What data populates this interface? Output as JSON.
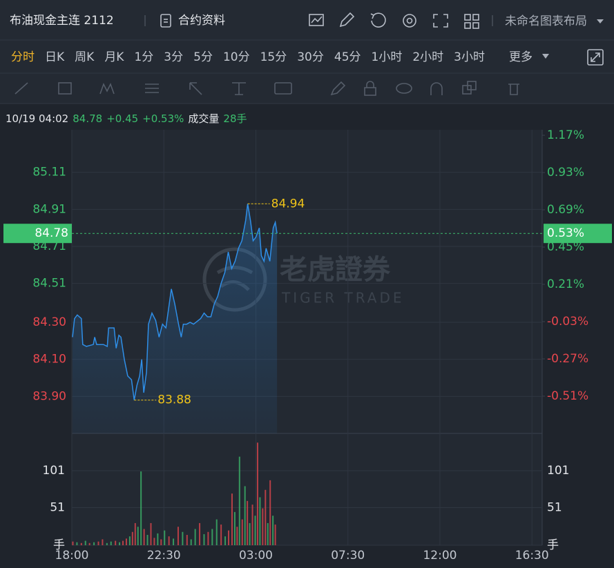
{
  "header": {
    "title": "布油现金主连 2112",
    "contract_info": "合约资料",
    "layout_name": "未命名图表布局"
  },
  "timeframes": {
    "items": [
      "分时",
      "日K",
      "周K",
      "月K",
      "1分",
      "3分",
      "5分",
      "10分",
      "15分",
      "30分",
      "45分",
      "1小时",
      "2小时",
      "3小时"
    ],
    "more": "更多",
    "active": 0,
    "active_color": "#f0b429"
  },
  "chart_data": {
    "type": "line",
    "info": {
      "time": "10/19 04:02",
      "change": "+0.45",
      "change_pct": "+0.53%",
      "volume_label": "成交量",
      "volume": "28手"
    },
    "current": {
      "value": 84.78,
      "pct": {
        "value": 0.53,
        "label": "0.53%"
      }
    },
    "x": [
      2,
      8,
      16,
      28,
      32,
      43,
      63,
      67,
      73,
      93,
      104,
      108,
      114,
      124,
      130,
      138,
      144,
      154,
      164,
      175,
      183,
      191,
      199,
      205,
      211,
      219,
      225,
      235,
      246,
      256,
      266,
      276,
      286,
      292,
      302,
      313,
      321,
      327,
      337,
      347,
      357,
      378,
      388,
      398,
      408,
      418,
      428,
      438,
      449,
      459,
      469,
      479,
      489,
      499,
      510,
      516,
      524,
      532,
      540,
      550,
      556,
      564,
      570,
      581,
      591,
      597,
      602
    ],
    "values": [
      84.22,
      84.32,
      84.34,
      84.32,
      84.18,
      84.17,
      84.18,
      84.22,
      84.18,
      84.18,
      84.17,
      84.27,
      84.27,
      84.27,
      84.16,
      84.23,
      84.22,
      84.1,
      84.01,
      83.99,
      83.88,
      83.96,
      84.01,
      84.1,
      83.92,
      84.03,
      84.29,
      84.35,
      84.31,
      84.22,
      84.29,
      84.27,
      84.4,
      84.48,
      84.4,
      84.29,
      84.22,
      84.29,
      84.29,
      84.3,
      84.29,
      84.32,
      84.35,
      84.33,
      84.33,
      84.4,
      84.44,
      84.51,
      84.57,
      84.68,
      84.59,
      84.63,
      84.7,
      84.74,
      84.85,
      84.94,
      84.85,
      84.74,
      84.76,
      84.81,
      84.66,
      84.63,
      84.7,
      84.63,
      84.81,
      84.84,
      84.78
    ],
    "color": "#2f8fe8",
    "xlim": [
      0,
      1380
    ],
    "xticks": [
      {
        "value": 0,
        "label": "18:00"
      },
      {
        "value": 270,
        "label": "22:30"
      },
      {
        "value": 540,
        "label": "03:00"
      },
      {
        "value": 810,
        "label": "07:30"
      },
      {
        "value": 1080,
        "label": "12:00"
      },
      {
        "value": 1350,
        "label": "16:30"
      }
    ],
    "ylim": [
      83.7,
      85.31
    ],
    "yticks": [
      {
        "value": 83.9,
        "label": "83.90"
      },
      {
        "value": 84.1,
        "label": "84.10"
      },
      {
        "value": 84.3,
        "label": "84.30"
      },
      84.51,
      84.71,
      84.91,
      85.11
    ],
    "y2lim": [
      -0.75,
      1.17
    ],
    "y2ticks": [
      {
        "value": -0.51,
        "label": "-0.51%"
      },
      {
        "value": -0.27,
        "label": "-0.27%"
      },
      {
        "value": -0.03,
        "label": "-0.03%"
      },
      {
        "value": 0.21,
        "label": "0.21%"
      },
      {
        "value": 0.45,
        "label": "0.45%"
      },
      {
        "value": 0.69,
        "label": "0.69%"
      },
      {
        "value": 0.93,
        "label": "0.93%"
      },
      {
        "value": 1.17,
        "label": "1.17%"
      }
    ],
    "up_color": "#3dbf6e",
    "down_color": "#e8474e",
    "grid": true,
    "annotations": [
      {
        "x": 516,
        "value": 84.94
      },
      {
        "x": 183,
        "value": 83.88
      }
    ],
    "annotation_color": "#f0c419",
    "volume": {
      "x": [
        3,
        15,
        28,
        40,
        52,
        65,
        78,
        90,
        103,
        115,
        128,
        140,
        150,
        160,
        170,
        178,
        186,
        194,
        203,
        212,
        222,
        232,
        242,
        252,
        262,
        272,
        285,
        298,
        312,
        325,
        338,
        350,
        362,
        375,
        388,
        400,
        412,
        425,
        438,
        450,
        460,
        470,
        478,
        485,
        492,
        500,
        508,
        515,
        522,
        530,
        538,
        545,
        552,
        560,
        568,
        575,
        582,
        590,
        597
      ],
      "values": [
        5,
        4,
        3,
        6,
        3,
        4,
        5,
        8,
        3,
        5,
        6,
        4,
        6,
        9,
        12,
        18,
        30,
        25,
        100,
        22,
        14,
        30,
        10,
        16,
        8,
        20,
        12,
        9,
        25,
        18,
        14,
        8,
        22,
        30,
        15,
        18,
        22,
        35,
        28,
        12,
        20,
        70,
        45,
        25,
        120,
        35,
        80,
        60,
        30,
        55,
        40,
        139,
        65,
        50,
        75,
        30,
        88,
        40,
        28
      ],
      "colors": [
        "#e8474e",
        "#3dbf6e",
        "#e8474e",
        "#3dbf6e",
        "#e8474e",
        "#3dbf6e",
        "#e8474e",
        "#e8474e",
        "#3dbf6e",
        "#3dbf6e",
        "#e8474e",
        "#3dbf6e",
        "#e8474e",
        "#e8474e",
        "#3dbf6e",
        "#e8474e",
        "#e8474e",
        "#3dbf6e",
        "#3dbf6e",
        "#e8474e",
        "#3dbf6e",
        "#e8474e",
        "#e8474e",
        "#3dbf6e",
        "#e8474e",
        "#3dbf6e",
        "#e8474e",
        "#3dbf6e",
        "#e8474e",
        "#3dbf6e",
        "#e8474e",
        "#3dbf6e",
        "#3dbf6e",
        "#e8474e",
        "#3dbf6e",
        "#e8474e",
        "#3dbf6e",
        "#3dbf6e",
        "#e8474e",
        "#3dbf6e",
        "#e8474e",
        "#e8474e",
        "#3dbf6e",
        "#e8474e",
        "#3dbf6e",
        "#e8474e",
        "#3dbf6e",
        "#e8474e",
        "#3dbf6e",
        "#e8474e",
        "#3dbf6e",
        "#e8474e",
        "#3dbf6e",
        "#e8474e",
        "#e8474e",
        "#3dbf6e",
        "#e8474e",
        "#3dbf6e",
        "#e8474e"
      ],
      "ylim": [
        0,
        144
      ],
      "yticks": [
        {
          "value": 0,
          "label": "手"
        },
        51,
        101
      ]
    },
    "watermark": {
      "brand": "老虎證券",
      "sub": "TIGER TRADE"
    }
  }
}
